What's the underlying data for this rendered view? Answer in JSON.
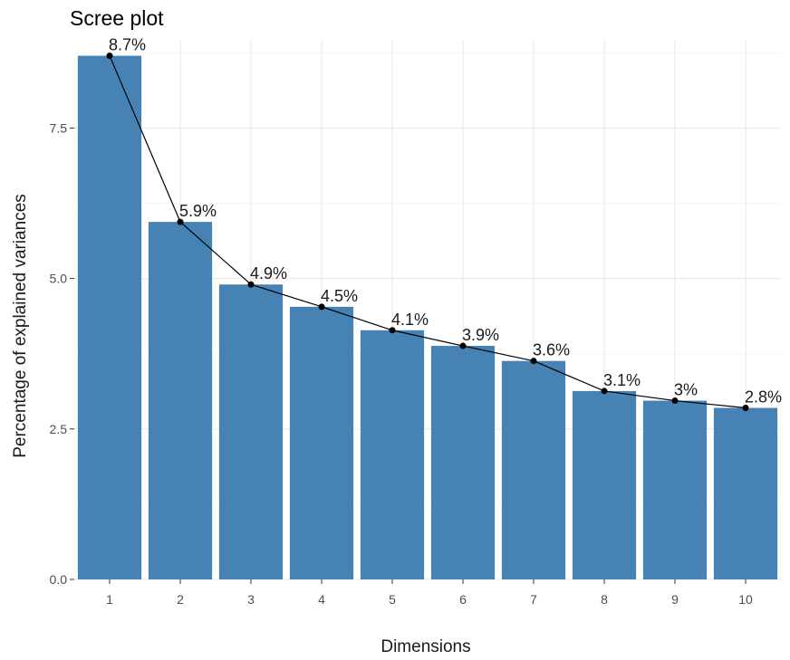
{
  "chart_data": {
    "type": "bar",
    "title": "Scree plot",
    "xlabel": "Dimensions",
    "ylabel": "Percentage of explained variances",
    "categories": [
      "1",
      "2",
      "3",
      "4",
      "5",
      "6",
      "7",
      "8",
      "9",
      "10"
    ],
    "values": [
      8.7,
      5.94,
      4.9,
      4.53,
      4.14,
      3.88,
      3.63,
      3.13,
      2.97,
      2.85
    ],
    "data_labels": [
      "8.7%",
      "5.9%",
      "4.9%",
      "4.5%",
      "4.1%",
      "3.9%",
      "3.6%",
      "3.1%",
      "3%",
      "2.8%"
    ],
    "yticks": [
      0,
      2.5,
      5,
      7.5
    ],
    "ytick_labels": [
      "0.0",
      "2.5",
      "5.0",
      "7.5"
    ],
    "ylim": [
      0,
      8.95
    ],
    "bar_color": "#4682B4",
    "line_color": "#000000",
    "point_color": "#000000",
    "grid": true,
    "legend": "none"
  }
}
